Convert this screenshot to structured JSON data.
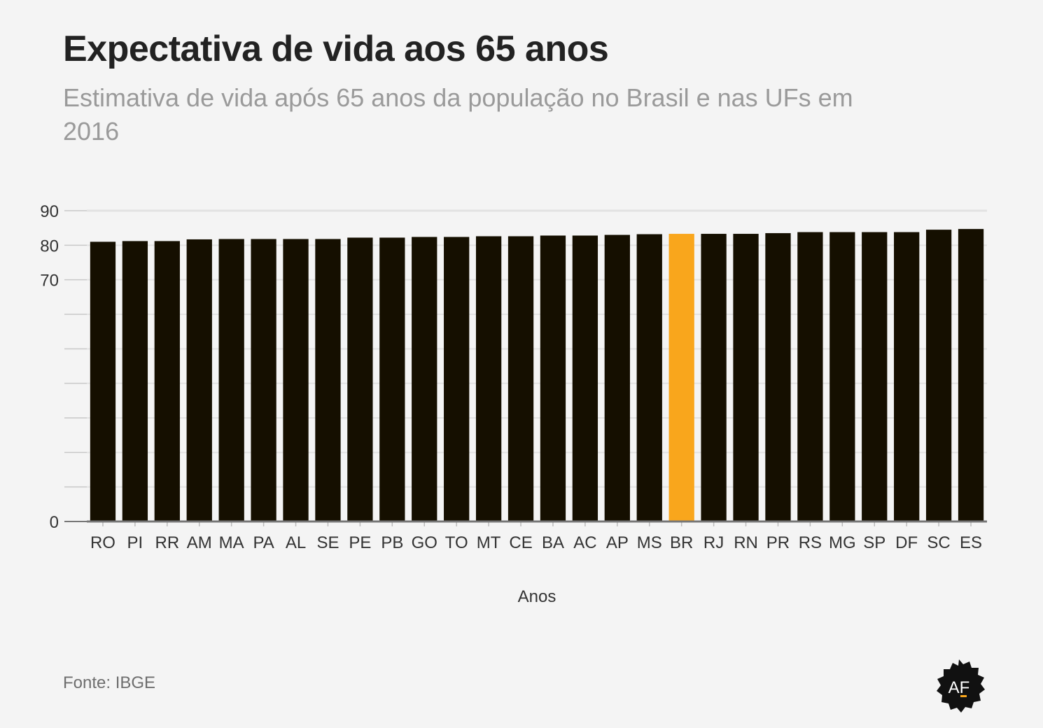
{
  "header": {
    "title": "Expectativa de vida aos 65 anos",
    "subtitle": "Estimativa de vida após 65 anos da população no Brasil e nas UFs em 2016"
  },
  "footer": {
    "source": "Fonte: IBGE"
  },
  "logo": {
    "text": "AF",
    "icon": "af-badge-icon"
  },
  "colors": {
    "bar": "#150f00",
    "highlight": "#f9a61c",
    "grid": "#e2e2e2",
    "axis": "#777777"
  },
  "chart_data": {
    "type": "bar",
    "title": "Expectativa de vida aos 65 anos",
    "xlabel": "Anos",
    "ylabel": "",
    "ylim": [
      0,
      90
    ],
    "yticks": [
      0,
      70,
      80,
      90
    ],
    "grid": true,
    "highlight_category": "BR",
    "categories": [
      "RO",
      "PI",
      "RR",
      "AM",
      "MA",
      "PA",
      "AL",
      "SE",
      "PE",
      "PB",
      "GO",
      "TO",
      "MT",
      "CE",
      "BA",
      "AC",
      "AP",
      "MS",
      "BR",
      "RJ",
      "RN",
      "PR",
      "RS",
      "MG",
      "SP",
      "DF",
      "SC",
      "ES"
    ],
    "values": [
      81.0,
      81.2,
      81.2,
      81.7,
      81.8,
      81.8,
      81.8,
      81.8,
      82.2,
      82.2,
      82.4,
      82.4,
      82.6,
      82.6,
      82.8,
      82.8,
      83.0,
      83.2,
      83.3,
      83.3,
      83.3,
      83.5,
      83.8,
      83.8,
      83.8,
      83.8,
      84.5,
      84.7
    ]
  }
}
